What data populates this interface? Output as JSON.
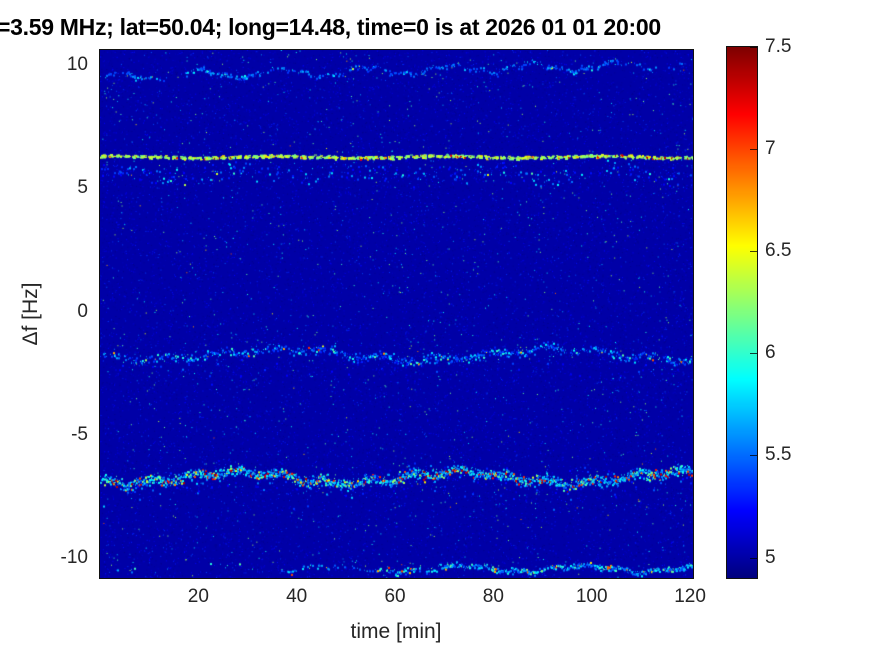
{
  "chart_data": {
    "type": "heatmap",
    "title": "=3.59 MHz;  lat=50.04; long=14.48, time=0 is at 2026 01 01 20:00",
    "xlabel": "time [min]",
    "ylabel": "Δf [Hz]",
    "x_ticks": [
      20,
      40,
      60,
      80,
      100,
      120
    ],
    "y_ticks": [
      10,
      5,
      0,
      -5,
      -10
    ],
    "xlim": [
      0,
      120.6
    ],
    "ylim": [
      -10.8,
      10.6
    ],
    "clim": [
      4.9,
      7.5
    ],
    "colormap": "jet",
    "colorbar_ticks": [
      7.5,
      7,
      6.5,
      6,
      5.5,
      5
    ],
    "grid": false,
    "legend": null,
    "background_level": 5.0,
    "noise": {
      "density": 0.085,
      "level": [
        4.92,
        5.5
      ],
      "bright_density": 0.0035,
      "bright_level": [
        5.55,
        6.35
      ],
      "rare_density": 0.00012,
      "rare_level": [
        6.4,
        7.0
      ]
    },
    "bands": [
      {
        "name": "faint-trace-9.8Hz",
        "df": 9.55,
        "drift": 0.5,
        "wave": [
          [
            0.16,
            17,
            0.5
          ],
          [
            0.07,
            5.2,
            2.1
          ]
        ],
        "thickness": 0.1,
        "density": 0.42,
        "level": [
          5.35,
          6.05
        ],
        "spike_p": 0.02,
        "spike": [
          6.1,
          6.45
        ],
        "segments": [
          [
            1,
            14,
            0.9
          ],
          [
            14,
            17,
            0.25
          ],
          [
            17,
            31,
            1.1
          ],
          [
            31,
            55,
            0.65
          ],
          [
            55,
            77,
            0.95
          ],
          [
            77,
            104,
            1.15
          ],
          [
            104,
            113,
            0.5
          ],
          [
            113,
            121,
            0.3
          ]
        ]
      },
      {
        "name": "strong-dashed-line-6.3Hz",
        "df": 6.28,
        "wave": [
          [
            0.04,
            33,
            1.0
          ]
        ],
        "thickness": 0.06,
        "density": 0.95,
        "dash": [
          5,
          3
        ],
        "tries": 3,
        "level": [
          6.15,
          6.85
        ],
        "spike_p": 0.07,
        "spike_ramp": true,
        "spike": [
          6.9,
          7.45
        ]
      },
      {
        "name": "scatter-below-line-5.6Hz",
        "df": 5.6,
        "wave": [
          [
            0.15,
            25,
            0.8
          ]
        ],
        "thickness": 0.42,
        "density": 0.3,
        "level": [
          5.2,
          6.15
        ],
        "spike_p": 0.012,
        "spike": [
          6.2,
          6.8
        ],
        "segments": [
          [
            0,
            30,
            1.2
          ],
          [
            30,
            65,
            0.9
          ],
          [
            65,
            95,
            1.1
          ],
          [
            95,
            121,
            1.0
          ]
        ]
      },
      {
        "name": "wavy-trace--1.7Hz",
        "df": -1.72,
        "wave": [
          [
            0.22,
            55,
            3.6
          ],
          [
            0.1,
            11,
            0.3
          ]
        ],
        "thickness": 0.18,
        "density": 0.55,
        "level": [
          5.3,
          6.3
        ],
        "spike_p": 0.03,
        "spike": [
          6.4,
          7.1
        ],
        "segments": [
          [
            0,
            8,
            0.7
          ],
          [
            8,
            50,
            1.0
          ],
          [
            50,
            95,
            1.3
          ],
          [
            95,
            118,
            0.9
          ],
          [
            118,
            121,
            1.2
          ]
        ]
      },
      {
        "name": "diffuse-below--2.3Hz",
        "df": -2.3,
        "thickness": 0.5,
        "density": 0.1,
        "level": [
          5.05,
          5.6
        ],
        "spike_p": 0,
        "spike": [
          0,
          0
        ]
      },
      {
        "name": "strong-band--6.7Hz",
        "df": -6.7,
        "wave": [
          [
            0.22,
            45,
            4.0
          ],
          [
            0.1,
            9,
            1.0
          ]
        ],
        "thickness": 0.22,
        "density": 0.9,
        "tries": 3,
        "level": [
          5.5,
          6.7
        ],
        "spike_p": 0.12,
        "spike": [
          6.8,
          7.45
        ]
      },
      {
        "name": "diffuse-around--7Hz",
        "df": -6.9,
        "wave": [
          [
            0.2,
            45,
            4.0
          ]
        ],
        "thickness": 0.75,
        "density": 0.22,
        "level": [
          5.1,
          5.9
        ],
        "spike_p": 0.01,
        "spike": [
          6.0,
          6.5
        ],
        "segments": [
          [
            0,
            55,
            0.8
          ],
          [
            55,
            121,
            1.3
          ]
        ]
      },
      {
        "name": "bottom-trace--10.4Hz",
        "df": -10.4,
        "wave": [
          [
            0.12,
            25,
            2.0
          ],
          [
            0.05,
            7,
            0.7
          ]
        ],
        "thickness": 0.12,
        "density": 0.65,
        "level": [
          5.4,
          6.45
        ],
        "spike_p": 0.05,
        "spike": [
          6.5,
          7.1
        ],
        "segments": [
          [
            0,
            38,
            0.06
          ],
          [
            38,
            58,
            0.4
          ],
          [
            58,
            70,
            0.75
          ],
          [
            70,
            121,
            1.1
          ]
        ]
      }
    ]
  }
}
